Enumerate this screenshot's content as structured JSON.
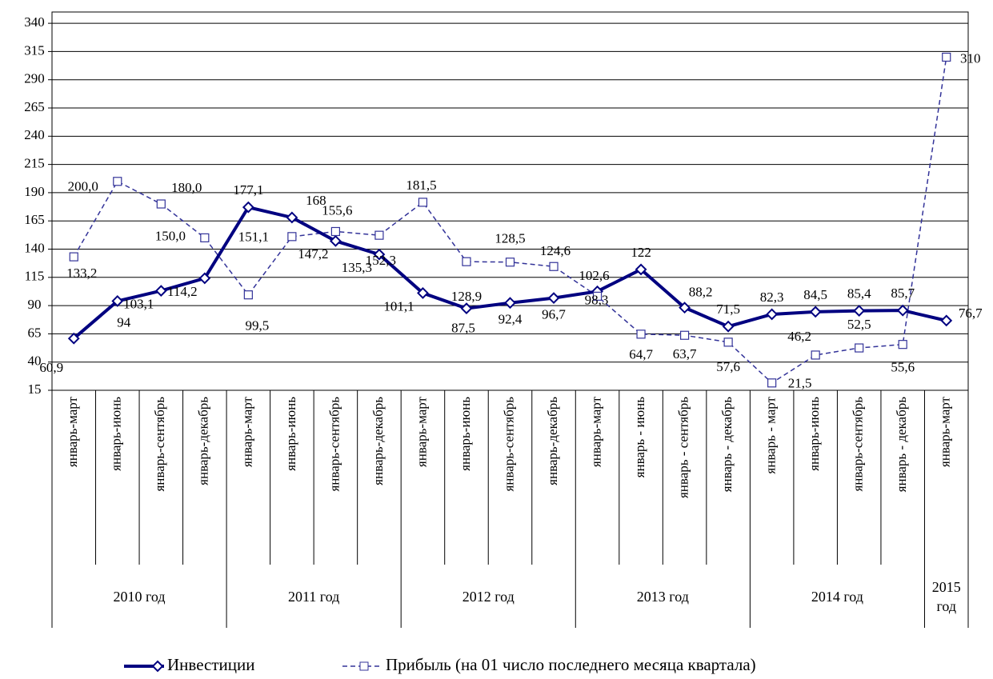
{
  "chart_data": {
    "type": "line",
    "groups": [
      {
        "name": "2010 год",
        "categories": [
          "январь-март",
          "январь-июнь",
          "январь-сентябрь",
          "январь-декабрь"
        ]
      },
      {
        "name": "2011 год",
        "categories": [
          "январь-март",
          "январь-июнь",
          "январь-сентябрь",
          "январь-декабрь"
        ]
      },
      {
        "name": "2012 год",
        "categories": [
          "январь-март",
          "январь-июнь",
          "январь-сентябрь",
          "январь-декабрь"
        ]
      },
      {
        "name": "2013 год",
        "categories": [
          "январь-март",
          "январь - июнь",
          "январь - сентябрь",
          "январь - декабрь"
        ]
      },
      {
        "name": "2014 год",
        "categories": [
          "январь - март",
          "январь-июнь",
          "январь-сентябрь",
          "январь - декабрь"
        ]
      },
      {
        "name": "2015 год",
        "categories": [
          "январь-март"
        ]
      }
    ],
    "series": [
      {
        "name": "Инвестиции",
        "color": "#000080",
        "marker": "diamond",
        "dashed": false,
        "values": [
          60.9,
          94,
          103.1,
          114.2,
          177.1,
          168,
          147.2,
          135.3,
          101.1,
          87.5,
          92.4,
          96.7,
          102.6,
          122,
          88.2,
          71.5,
          82.3,
          84.5,
          85.4,
          85.7,
          76.7
        ],
        "value_labels": [
          "60,9",
          "94",
          "103,1",
          "114,2",
          "177,1",
          "168",
          "147,2",
          "135,3",
          "101,1",
          "87,5",
          "92,4",
          "96,7",
          "102,6",
          "122",
          "88,2",
          "71,5",
          "82,3",
          "84,5",
          "85,4",
          "85,7",
          "76,7"
        ]
      },
      {
        "name": "Прибыль (на 01 число последнего месяца квартала)",
        "color": "#333399",
        "marker": "square",
        "dashed": true,
        "values": [
          133.2,
          200.0,
          180.0,
          150.0,
          99.5,
          151.1,
          155.6,
          152.3,
          181.5,
          128.9,
          128.5,
          124.6,
          98.3,
          64.7,
          63.7,
          57.6,
          21.5,
          46.2,
          52.5,
          55.6,
          310
        ],
        "value_labels": [
          "133,2",
          "200,0",
          "180,0",
          "150,0",
          "99,5",
          "151,1",
          "155,6",
          "152,3",
          "181,5",
          "128,9",
          "128,5",
          "124,6",
          "98,3",
          "64,7",
          "63,7",
          "57,6",
          "21,5",
          "46,2",
          "52,5",
          "55,6",
          "310"
        ]
      }
    ],
    "ylim": [
      15,
      350
    ],
    "yticks": [
      15,
      40,
      65,
      90,
      115,
      140,
      165,
      190,
      215,
      240,
      265,
      290,
      315,
      340
    ],
    "grid": true,
    "legend": "bottom"
  }
}
